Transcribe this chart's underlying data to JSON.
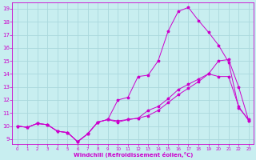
{
  "xlabel": "Windchill (Refroidissement éolien,°C)",
  "background_color": "#c8eef0",
  "grid_color": "#aad8dc",
  "line_color": "#cc00cc",
  "xlim": [
    -0.5,
    23.5
  ],
  "ylim": [
    8.6,
    19.5
  ],
  "yticks": [
    9,
    10,
    11,
    12,
    13,
    14,
    15,
    16,
    17,
    18,
    19
  ],
  "xticks": [
    0,
    1,
    2,
    3,
    4,
    5,
    6,
    7,
    8,
    9,
    10,
    11,
    12,
    13,
    14,
    15,
    16,
    17,
    18,
    19,
    20,
    21,
    22,
    23
  ],
  "series1_x": [
    0,
    1,
    2,
    3,
    4,
    5,
    6,
    7,
    8,
    9,
    10,
    11,
    12,
    13,
    14,
    15,
    16,
    17,
    18,
    19,
    20,
    21,
    22,
    23
  ],
  "series1_y": [
    10.0,
    9.9,
    10.2,
    10.1,
    9.6,
    9.5,
    8.8,
    9.4,
    10.3,
    10.5,
    12.0,
    12.2,
    13.8,
    13.9,
    15.0,
    17.3,
    18.8,
    19.1,
    18.1,
    17.2,
    16.2,
    14.9,
    11.4,
    10.5
  ],
  "series2_x": [
    0,
    1,
    2,
    3,
    4,
    5,
    6,
    7,
    8,
    9,
    10,
    11,
    12,
    13,
    14,
    15,
    16,
    17,
    18,
    19,
    20,
    21,
    22,
    23
  ],
  "series2_y": [
    10.0,
    9.9,
    10.2,
    10.1,
    9.6,
    9.5,
    8.8,
    9.4,
    10.3,
    10.5,
    10.4,
    10.5,
    10.6,
    11.2,
    11.5,
    12.1,
    12.8,
    13.2,
    13.6,
    14.0,
    13.8,
    13.8,
    11.5,
    10.4
  ],
  "series3_x": [
    0,
    1,
    2,
    3,
    4,
    5,
    6,
    7,
    8,
    9,
    10,
    11,
    12,
    13,
    14,
    15,
    16,
    17,
    18,
    19,
    20,
    21,
    22,
    23
  ],
  "series3_y": [
    10.0,
    9.9,
    10.2,
    10.1,
    9.6,
    9.5,
    8.8,
    9.4,
    10.3,
    10.5,
    10.3,
    10.5,
    10.6,
    10.8,
    11.2,
    11.8,
    12.4,
    12.9,
    13.4,
    14.0,
    15.0,
    15.1,
    13.0,
    10.4
  ]
}
